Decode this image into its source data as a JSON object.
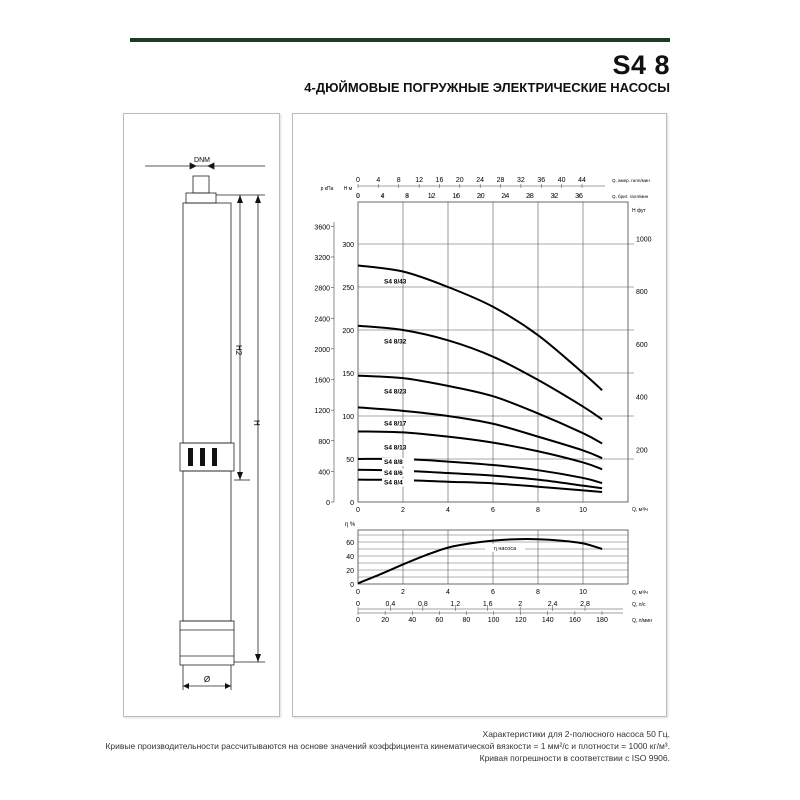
{
  "header": {
    "title": "S4 8",
    "subtitle": "4-ДЮЙМОВЫЕ ПОГРУЖНЫЕ ЭЛЕКТРИЧЕСКИЕ НАСОСЫ",
    "rule_color": "#1f3d26"
  },
  "drawing": {
    "labels": {
      "dnm": "DNM",
      "h2": "H2",
      "h": "H",
      "diameter": "Ø"
    }
  },
  "chart_data": [
    {
      "type": "line",
      "x_label": "Q, м³/ч",
      "xlim": [
        0,
        12
      ],
      "x_ticks": [
        0,
        2,
        4,
        6,
        8,
        10
      ],
      "y_label": "H м",
      "ylim": [
        0,
        300
      ],
      "y_ticks": [
        0,
        50,
        100,
        150,
        200,
        250,
        300
      ],
      "grid": true,
      "left_axis": {
        "label": "p кПа",
        "ticks": [
          0,
          400,
          800,
          1200,
          1600,
          2000,
          2400,
          2800,
          3200,
          3600
        ]
      },
      "right_axis": {
        "label": "H фут",
        "ticks": [
          200,
          400,
          600,
          800,
          1000
        ]
      },
      "top_axes": [
        {
          "label": "Q, амер. галл/мин",
          "ticks": [
            0,
            4,
            8,
            12,
            16,
            20,
            24,
            28,
            32,
            36,
            40,
            44
          ]
        },
        {
          "label": "Q, брит. галл/мин",
          "ticks": [
            0,
            4,
            8,
            12,
            16,
            20,
            24,
            28,
            32,
            36
          ]
        }
      ],
      "series": [
        {
          "name": "S4 8/43",
          "x": [
            0,
            2,
            4,
            6,
            8,
            10,
            10.85
          ],
          "y": [
            275,
            268,
            250,
            227,
            194,
            150,
            130
          ]
        },
        {
          "name": "S4 8/32",
          "x": [
            0,
            2,
            4,
            6,
            8,
            10,
            10.85
          ],
          "y": [
            205,
            200,
            188,
            169,
            142,
            111,
            96
          ]
        },
        {
          "name": "S4 8/23",
          "x": [
            0,
            2,
            4,
            6,
            8,
            10,
            10.85
          ],
          "y": [
            147,
            144,
            135,
            123,
            103,
            80,
            68
          ]
        },
        {
          "name": "S4 8/17",
          "x": [
            0,
            2,
            4,
            6,
            8,
            10,
            10.85
          ],
          "y": [
            110,
            106,
            100,
            91,
            76,
            60,
            51
          ]
        },
        {
          "name": "S4 8/13",
          "x": [
            0,
            2,
            4,
            6,
            8,
            10,
            10.85
          ],
          "y": [
            82,
            81,
            76,
            69,
            59,
            46,
            38
          ]
        },
        {
          "name": "S4 8/8",
          "x": [
            0,
            2,
            4,
            6,
            8,
            10,
            10.85
          ],
          "y": [
            50,
            50,
            47,
            43,
            37,
            28,
            22
          ]
        },
        {
          "name": "S4 8/6",
          "x": [
            0,
            2,
            4,
            6,
            8,
            10,
            10.85
          ],
          "y": [
            37.5,
            36.4,
            33.7,
            30.6,
            26,
            19,
            16
          ]
        },
        {
          "name": "S4 8/4",
          "x": [
            0,
            2,
            4,
            6,
            8,
            10,
            10.85
          ],
          "y": [
            26,
            25.5,
            23.6,
            21.7,
            17.8,
            13.5,
            11.6
          ]
        }
      ]
    },
    {
      "type": "line",
      "y_label": "η %",
      "ylim": [
        0,
        70
      ],
      "y_ticks": [
        0,
        20,
        40,
        60
      ],
      "xlim": [
        0,
        12
      ],
      "grid": true,
      "series": [
        {
          "name": "η насоса",
          "x": [
            0,
            1,
            2,
            3,
            4,
            5,
            6,
            7,
            8,
            9,
            10,
            10.85
          ],
          "y": [
            1,
            14,
            28,
            41,
            52,
            58,
            62,
            64,
            64,
            62,
            58,
            50
          ]
        }
      ],
      "bottom_axes": [
        {
          "label": "Q, м³/ч",
          "ticks": [
            0,
            2,
            4,
            6,
            8,
            10
          ]
        },
        {
          "label": "Q, л/с",
          "ticks": [
            "0",
            "0,4",
            "0,8",
            "1,2",
            "1,6",
            "2",
            "2,4",
            "2,8"
          ]
        },
        {
          "label": "Q, л/мин",
          "ticks": [
            0,
            20,
            40,
            60,
            80,
            100,
            120,
            140,
            160,
            180
          ]
        }
      ]
    }
  ],
  "footnotes": [
    "Характеристики для 2-полюсного насоса 50 Гц.",
    "Кривые производительности рассчитываются на основе значений коэффициента кинематической вязкости = 1 мм²/с и плотности = 1000 кг/м³.",
    "Кривая погрешности в соответствии с ISO 9906."
  ]
}
